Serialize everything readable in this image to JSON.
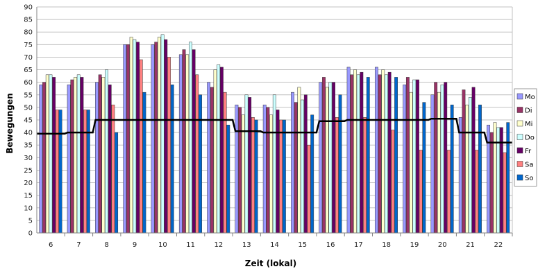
{
  "chart_data": {
    "type": "bar",
    "title": "",
    "xlabel": "Zeit (lokal)",
    "ylabel": "Bewegungen",
    "ylim": [
      0,
      90
    ],
    "ytick_step": 5,
    "grid": true,
    "legend_position": "right",
    "categories": [
      "6",
      "7",
      "8",
      "9",
      "10",
      "11",
      "12",
      "13",
      "14",
      "15",
      "16",
      "17",
      "18",
      "19",
      "20",
      "21",
      "22"
    ],
    "series": [
      {
        "name": "Mo",
        "color": "#9999ff",
        "values": [
          59,
          59,
          60,
          75,
          75,
          71,
          60,
          51,
          51,
          56,
          60,
          66,
          66,
          59,
          55,
          46,
          43
        ]
      },
      {
        "name": "Di",
        "color": "#993366",
        "values": [
          60,
          61,
          63,
          75,
          76,
          73,
          58,
          50,
          50,
          52,
          62,
          63,
          63,
          62,
          60,
          57,
          40
        ]
      },
      {
        "name": "Mi",
        "color": "#ffffcc",
        "values": [
          63,
          62,
          62,
          78,
          78,
          71,
          65,
          47,
          47,
          58,
          58,
          65,
          65,
          56,
          56,
          51,
          44
        ]
      },
      {
        "name": "Do",
        "color": "#ccffff",
        "values": [
          63,
          63,
          65,
          77,
          79,
          76,
          67,
          55,
          55,
          53,
          60,
          63,
          63,
          61,
          59,
          54,
          42
        ]
      },
      {
        "name": "Fr",
        "color": "#660066",
        "values": [
          62,
          62,
          59,
          76,
          77,
          73,
          66,
          54,
          49,
          55,
          60,
          64,
          64,
          61,
          60,
          58,
          42
        ]
      },
      {
        "name": "Sa",
        "color": "#ff8080",
        "values": [
          49,
          49,
          51,
          69,
          70,
          63,
          56,
          46,
          45,
          35,
          46,
          46,
          41,
          33,
          33,
          33,
          32
        ]
      },
      {
        "name": "So",
        "color": "#0066cc",
        "values": [
          49,
          49,
          40,
          56,
          59,
          55,
          43,
          45,
          45,
          47,
          55,
          62,
          62,
          52,
          51,
          51,
          44
        ]
      }
    ],
    "average_line": {
      "color": "#000000",
      "values": [
        39.5,
        40,
        45,
        45,
        45,
        45,
        45,
        40.5,
        40,
        40,
        44.5,
        45,
        45,
        45,
        45.5,
        40,
        36
      ]
    }
  }
}
